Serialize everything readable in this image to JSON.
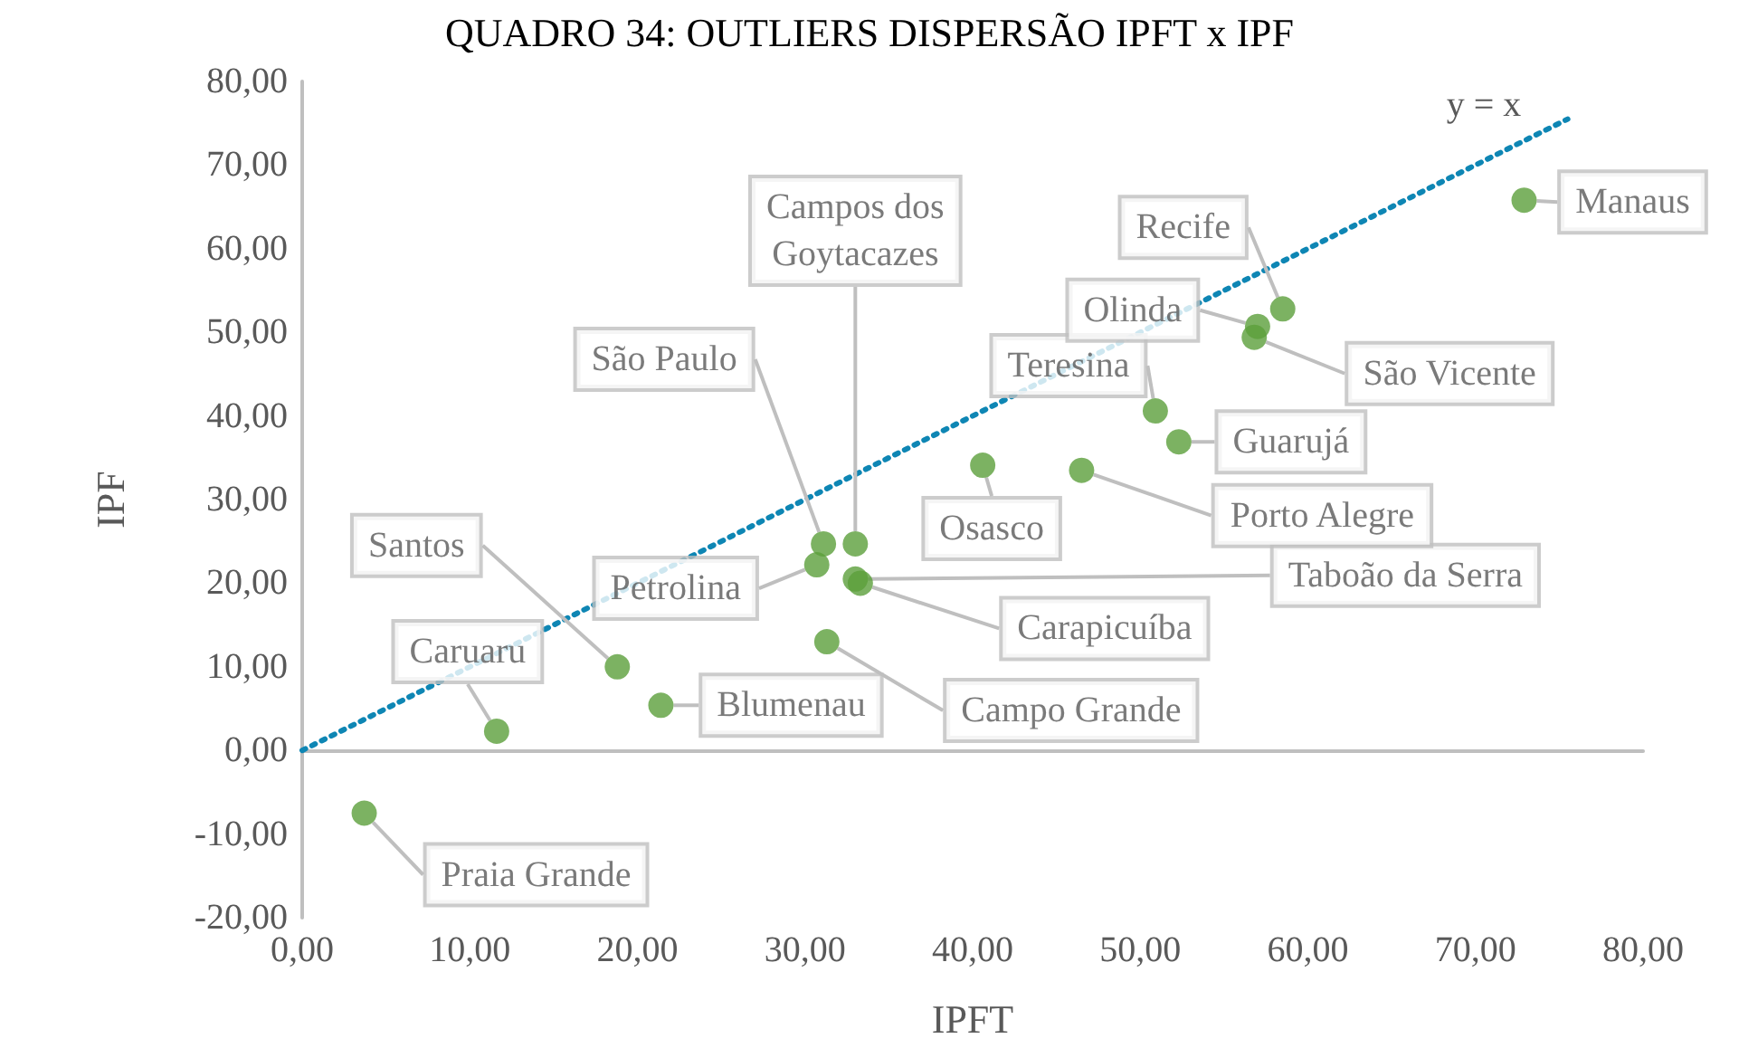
{
  "chart_data": {
    "type": "scatter",
    "title": "QUADRO 34: OUTLIERS DISPERSÃO IPFT x IPF",
    "xlabel": "IPFT",
    "ylabel": "IPF",
    "xlim": [
      0,
      80
    ],
    "xticks": [
      {
        "value": 0,
        "label": "0,00"
      },
      {
        "value": 10,
        "label": "10,00"
      },
      {
        "value": 20,
        "label": "20,00"
      },
      {
        "value": 30,
        "label": "30,00"
      },
      {
        "value": 40,
        "label": "40,00"
      },
      {
        "value": 50,
        "label": "50,00"
      },
      {
        "value": 60,
        "label": "60,00"
      },
      {
        "value": 70,
        "label": "70,00"
      },
      {
        "value": 80,
        "label": "80,00"
      }
    ],
    "ylim": [
      -20,
      80
    ],
    "yticks": [
      {
        "value": -20,
        "label": "-20,00"
      },
      {
        "value": -10,
        "label": "-10,00"
      },
      {
        "value": 0,
        "label": "0,00"
      },
      {
        "value": 10,
        "label": "10,00"
      },
      {
        "value": 20,
        "label": "20,00"
      },
      {
        "value": 30,
        "label": "30,00"
      },
      {
        "value": 40,
        "label": "40,00"
      },
      {
        "value": 50,
        "label": "50,00"
      },
      {
        "value": 60,
        "label": "60,00"
      },
      {
        "value": 70,
        "label": "70,00"
      },
      {
        "value": 80,
        "label": "80,00"
      }
    ],
    "legend": false,
    "marker": "circle",
    "series": [
      {
        "name": "Praia Grande",
        "color": "#5b9f3b",
        "x": [
          3.7
        ],
        "values": [
          -7.5
        ]
      },
      {
        "name": "Caruaru",
        "color": "#5b9f3b",
        "x": [
          11.6
        ],
        "values": [
          2.3
        ]
      },
      {
        "name": "Santos",
        "color": "#5b9f3b",
        "x": [
          18.8
        ],
        "values": [
          10.0
        ]
      },
      {
        "name": "Blumenau",
        "color": "#5b9f3b",
        "x": [
          21.4
        ],
        "values": [
          5.4
        ]
      },
      {
        "name": "Petrolina",
        "color": "#5b9f3b",
        "x": [
          30.7
        ],
        "values": [
          22.2
        ]
      },
      {
        "name": "São Paulo",
        "color": "#5b9f3b",
        "x": [
          31.1
        ],
        "values": [
          24.7
        ]
      },
      {
        "name": "Campos dos\nGoytacazes",
        "color": "#5b9f3b",
        "x": [
          33.0
        ],
        "values": [
          24.7
        ]
      },
      {
        "name": "Taboão da Serra",
        "color": "#5b9f3b",
        "x": [
          33.0
        ],
        "values": [
          20.5
        ]
      },
      {
        "name": "Carapicuíba",
        "color": "#5b9f3b",
        "x": [
          33.3
        ],
        "values": [
          20.0
        ]
      },
      {
        "name": "Campo Grande",
        "color": "#5b9f3b",
        "x": [
          31.3
        ],
        "values": [
          13.0
        ]
      },
      {
        "name": "Osasco",
        "color": "#5b9f3b",
        "x": [
          40.6
        ],
        "values": [
          34.1
        ]
      },
      {
        "name": "Porto Alegre",
        "color": "#5b9f3b",
        "x": [
          46.5
        ],
        "values": [
          33.5
        ]
      },
      {
        "name": "Teresina",
        "color": "#5b9f3b",
        "x": [
          50.9
        ],
        "values": [
          40.6
        ]
      },
      {
        "name": "Guarujá",
        "color": "#5b9f3b",
        "x": [
          52.3
        ],
        "values": [
          36.9
        ]
      },
      {
        "name": "Olinda",
        "color": "#5b9f3b",
        "x": [
          57.0
        ],
        "values": [
          50.7
        ]
      },
      {
        "name": "São Vicente",
        "color": "#5b9f3b",
        "x": [
          56.8
        ],
        "values": [
          49.4
        ]
      },
      {
        "name": "Recife",
        "color": "#5b9f3b",
        "x": [
          58.5
        ],
        "values": [
          52.8
        ]
      },
      {
        "name": "Manaus",
        "color": "#5b9f3b",
        "x": [
          72.9
        ],
        "values": [
          65.8
        ]
      },
      {
        "name": "y = x",
        "type": "line",
        "line_style": "dotted",
        "marker": "none",
        "color": "#0e86b4",
        "x": [
          0,
          75.5
        ],
        "values": [
          0,
          75.5
        ]
      }
    ]
  }
}
